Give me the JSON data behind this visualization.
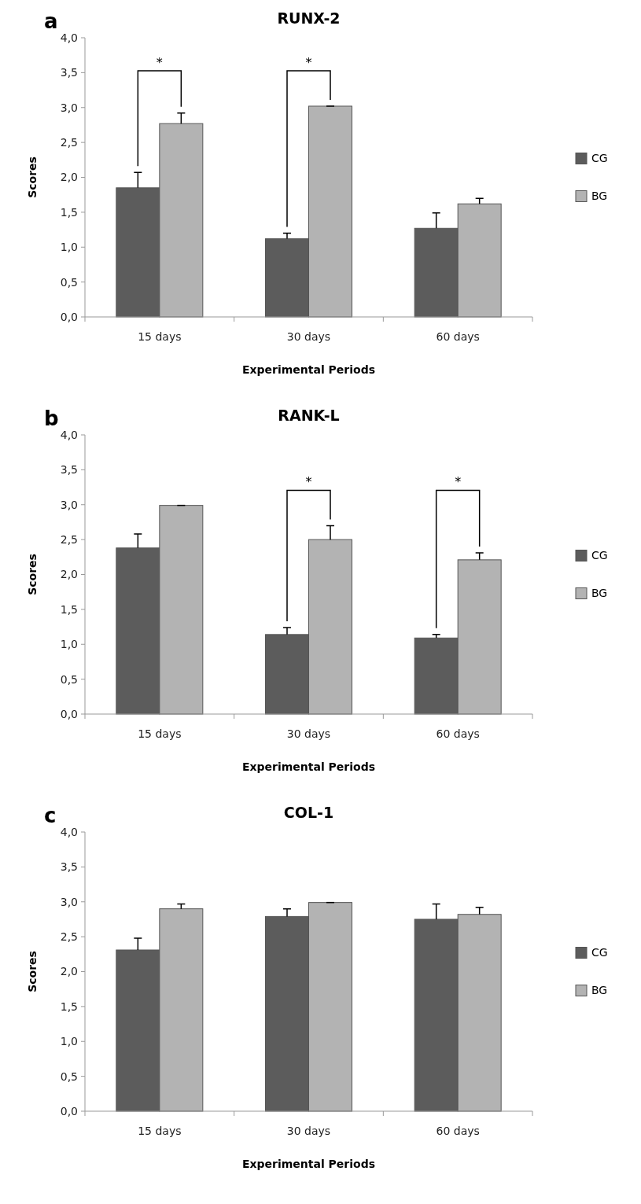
{
  "chart_data": [
    {
      "type": "bar",
      "title": "RUNX-2",
      "xlabel": "Experimental Periods",
      "ylabel": "Scores",
      "categories": [
        "15 days",
        "30 days",
        "60 days"
      ],
      "series": [
        {
          "name": "CG",
          "color": "#5c5c5c",
          "values": [
            1.85,
            1.12,
            1.27
          ],
          "errors": [
            [
              1.85,
              2.07
            ],
            [
              1.12,
              1.2
            ],
            [
              1.27,
              1.49
            ]
          ]
        },
        {
          "name": "BG",
          "color": "#b3b3b3",
          "values": [
            2.77,
            3.02,
            1.62
          ],
          "errors": [
            [
              2.77,
              2.92
            ],
            [
              3.02,
              3.02
            ],
            [
              1.62,
              1.7
            ]
          ]
        }
      ],
      "ylim": [
        0,
        4
      ],
      "yticks": [
        {
          "value": 0,
          "label": "0,0"
        },
        {
          "value": 0.5,
          "label": "0,5"
        },
        {
          "value": 1,
          "label": "1,0"
        },
        {
          "value": 1.5,
          "label": "1,5"
        },
        {
          "value": 2,
          "label": "2,0"
        },
        {
          "value": 2.5,
          "label": "2,5"
        },
        {
          "value": 3,
          "label": "3,0"
        },
        {
          "value": 3.5,
          "label": "3,5"
        },
        {
          "value": 4,
          "label": "4,0"
        }
      ],
      "legend": "right",
      "grid": false,
      "annotations": [
        "a",
        "*",
        "*"
      ]
    },
    {
      "type": "bar",
      "title": "RANK-L",
      "xlabel": "Experimental Periods",
      "ylabel": "Scores",
      "categories": [
        "15 days",
        "30 days",
        "60 days"
      ],
      "series": [
        {
          "name": "CG",
          "color": "#5c5c5c",
          "values": [
            2.38,
            1.14,
            1.09
          ],
          "errors": [
            [
              2.38,
              2.58
            ],
            [
              1.14,
              1.24
            ],
            [
              1.09,
              1.14
            ]
          ]
        },
        {
          "name": "BG",
          "color": "#b3b3b3",
          "values": [
            2.99,
            2.5,
            2.21
          ],
          "errors": [
            [
              2.99,
              2.99
            ],
            [
              2.5,
              2.7
            ],
            [
              2.21,
              2.31
            ]
          ]
        }
      ],
      "ylim": [
        0,
        4
      ],
      "yticks": [
        {
          "value": 0,
          "label": "0,0"
        },
        {
          "value": 0.5,
          "label": "0,5"
        },
        {
          "value": 1,
          "label": "1,0"
        },
        {
          "value": 1.5,
          "label": "1,5"
        },
        {
          "value": 2,
          "label": "2,0"
        },
        {
          "value": 2.5,
          "label": "2,5"
        },
        {
          "value": 3,
          "label": "3,0"
        },
        {
          "value": 3.5,
          "label": "3,5"
        },
        {
          "value": 4,
          "label": "4,0"
        }
      ],
      "legend": "right",
      "grid": false,
      "annotations": [
        "b",
        "*",
        "*"
      ]
    },
    {
      "type": "bar",
      "title": "COL-1",
      "xlabel": "Experimental Periods",
      "ylabel": "Scores",
      "categories": [
        "15 days",
        "30 days",
        "60 days"
      ],
      "series": [
        {
          "name": "CG",
          "color": "#5c5c5c",
          "values": [
            2.31,
            2.79,
            2.75
          ],
          "errors": [
            [
              2.31,
              2.48
            ],
            [
              2.79,
              2.9
            ],
            [
              2.75,
              2.97
            ]
          ]
        },
        {
          "name": "BG",
          "color": "#b3b3b3",
          "values": [
            2.9,
            2.99,
            2.82
          ],
          "errors": [
            [
              2.9,
              2.97
            ],
            [
              2.99,
              2.99
            ],
            [
              2.82,
              2.92
            ]
          ]
        }
      ],
      "ylim": [
        0,
        4
      ],
      "yticks": [
        {
          "value": 0,
          "label": "0,0"
        },
        {
          "value": 0.5,
          "label": "0,5"
        },
        {
          "value": 1,
          "label": "1,0"
        },
        {
          "value": 1.5,
          "label": "1,5"
        },
        {
          "value": 2,
          "label": "2,0"
        },
        {
          "value": 2.5,
          "label": "2,5"
        },
        {
          "value": 3,
          "label": "3,0"
        },
        {
          "value": 3.5,
          "label": "3,5"
        },
        {
          "value": 4,
          "label": "4,0"
        }
      ],
      "legend": "right",
      "grid": false,
      "annotations": [
        "c"
      ]
    }
  ]
}
